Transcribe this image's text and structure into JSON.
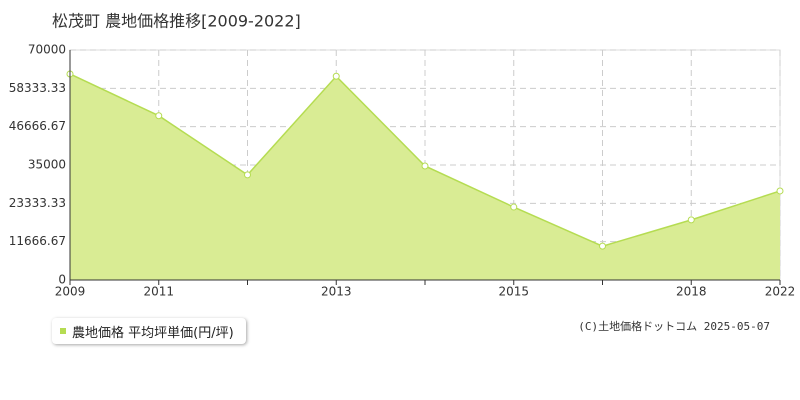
{
  "chart_data": {
    "type": "area",
    "title": "松茂町 農地価格推移[2009-2022]",
    "categories": [
      "2009",
      "2011",
      null,
      "2013",
      null,
      "2015",
      null,
      "2018",
      "2022"
    ],
    "series": [
      {
        "name": "農地価格 平均坪単価(円/坪)",
        "color": "#b5dc52",
        "fill": "#d9ec94",
        "values": [
          62700,
          50000,
          32000,
          62000,
          34700,
          22200,
          10300,
          18300,
          27100
        ]
      }
    ],
    "ylim": [
      0,
      70000
    ],
    "yticks": [
      0,
      11666.67,
      23333.33,
      35000,
      46666.67,
      58333.33,
      70000
    ],
    "grid": true,
    "copyright": "(C)土地価格ドットコム 2025-05-07"
  }
}
